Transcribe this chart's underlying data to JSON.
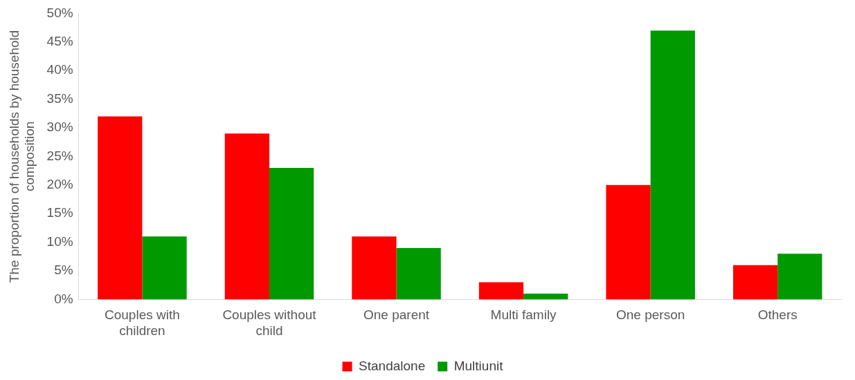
{
  "chart_data": {
    "type": "bar",
    "ylabel": "The proportion of households by household composition",
    "categories": [
      "Couples with children",
      "Couples without child",
      "One parent",
      "Multi family",
      "One person",
      "Others"
    ],
    "series": [
      {
        "name": "Standalone",
        "color": "#ff0000",
        "values": [
          32,
          29,
          11,
          3,
          20,
          6
        ]
      },
      {
        "name": "Multiunit",
        "color": "#009900",
        "values": [
          11,
          23,
          9,
          1,
          47,
          8
        ]
      }
    ],
    "ylim": [
      0,
      50
    ],
    "yticks": [
      {
        "value": 0,
        "label": "0%"
      },
      {
        "value": 5,
        "label": "5%"
      },
      {
        "value": 10,
        "label": "10%"
      },
      {
        "value": 15,
        "label": "15%"
      },
      {
        "value": 20,
        "label": "20%"
      },
      {
        "value": 25,
        "label": "25%"
      },
      {
        "value": 30,
        "label": "30%"
      },
      {
        "value": 35,
        "label": "35%"
      },
      {
        "value": 40,
        "label": "40%"
      },
      {
        "value": 45,
        "label": "45%"
      },
      {
        "value": 50,
        "label": "50%"
      }
    ],
    "grid": false,
    "legend": "bottom"
  }
}
